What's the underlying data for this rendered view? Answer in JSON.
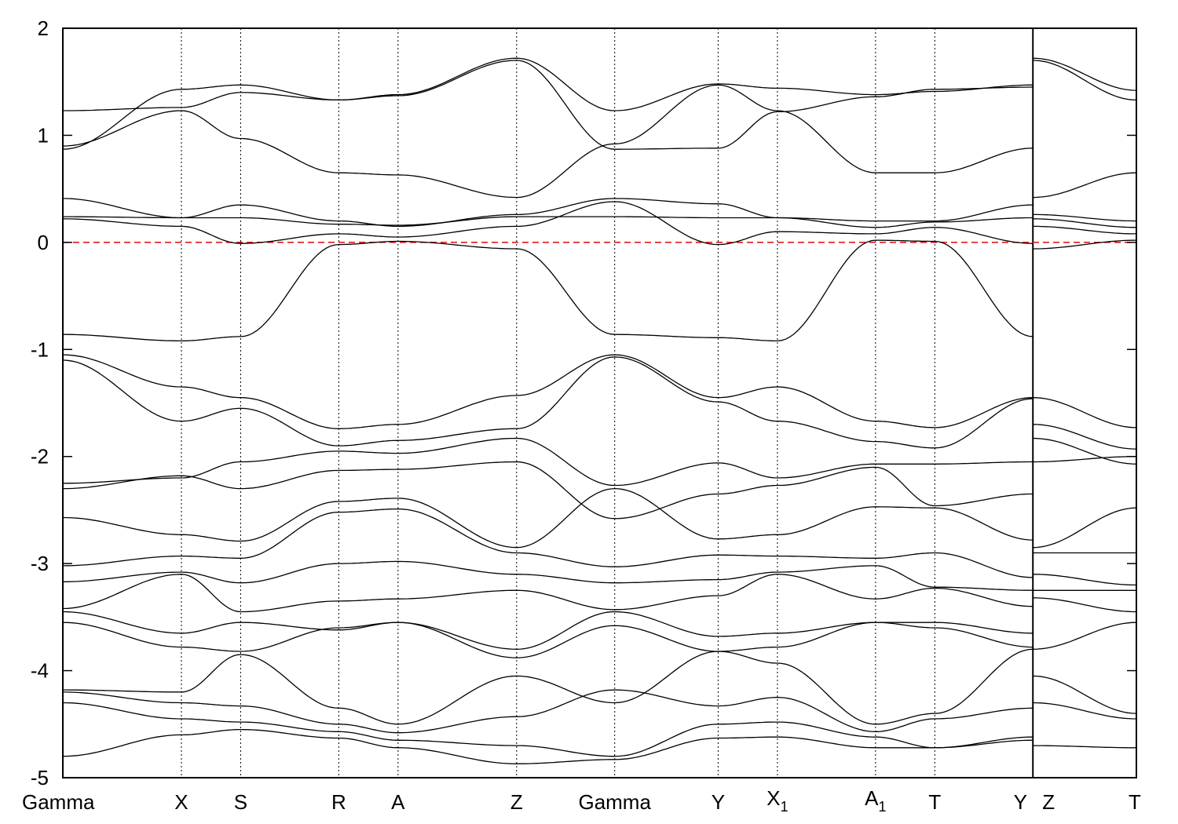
{
  "chart_data": {
    "type": "line",
    "title": "",
    "xlabel": "",
    "ylabel": "",
    "ylim": [
      -5,
      2
    ],
    "yticks": [
      2,
      1,
      0,
      -1,
      -2,
      -3,
      -4,
      -5
    ],
    "ytick_labels": [
      "2",
      "1",
      "0",
      "-1",
      "-2",
      "-3",
      "-4",
      "-5"
    ],
    "grid": false,
    "k_path": [
      {
        "label": "Gamma",
        "sub": "",
        "k": 0.0
      },
      {
        "label": "X",
        "sub": "",
        "k": 1.1
      },
      {
        "label": "S",
        "sub": "",
        "k": 1.65
      },
      {
        "label": "R",
        "sub": "",
        "k": 2.56
      },
      {
        "label": "A",
        "sub": "",
        "k": 3.11
      },
      {
        "label": "Z",
        "sub": "",
        "k": 4.21
      },
      {
        "label": "Gamma",
        "sub": "",
        "k": 5.12
      },
      {
        "label": "Y",
        "sub": "",
        "k": 6.08
      },
      {
        "label": "X",
        "sub": "1",
        "k": 6.63
      },
      {
        "label": "A",
        "sub": "1",
        "k": 7.54
      },
      {
        "label": "T",
        "sub": "",
        "k": 8.09
      },
      {
        "label": "Y",
        "sub": "",
        "k": 9.0
      },
      {
        "label": "Z",
        "sub": "",
        "k": 9.0
      },
      {
        "label": "T",
        "sub": "",
        "k": 9.96
      }
    ],
    "path_break_k": 9.0,
    "fermi_level": 0,
    "colors": {
      "bands": "#000000",
      "fermi_level": "#e41a1c",
      "kpath_lines": "#000000"
    },
    "series": [
      {
        "x": [
          0.0,
          1.1,
          1.65,
          2.56,
          3.11,
          4.21,
          5.12,
          6.08,
          6.63,
          7.54,
          8.09,
          9.0
        ],
        "y": [
          1.23,
          1.26,
          1.4,
          1.33,
          1.38,
          1.72,
          1.23,
          1.48,
          1.44,
          1.38,
          1.41,
          1.47
        ]
      },
      {
        "x": [
          0.0,
          1.1,
          1.65,
          2.56,
          3.11,
          4.21,
          5.12,
          6.08,
          6.63,
          7.54,
          8.09,
          9.0
        ],
        "y": [
          0.9,
          1.23,
          0.97,
          0.65,
          0.63,
          0.42,
          0.92,
          1.47,
          1.23,
          0.65,
          0.65,
          0.88
        ]
      },
      {
        "x": [
          0.0,
          1.1,
          1.65,
          2.56,
          3.11,
          4.21,
          5.12,
          6.08,
          6.63,
          7.54,
          8.09,
          9.0
        ],
        "y": [
          0.87,
          1.43,
          1.47,
          1.33,
          1.37,
          1.7,
          0.87,
          0.88,
          1.22,
          1.36,
          1.43,
          1.45
        ]
      },
      {
        "x": [
          0.0,
          1.1,
          1.65,
          2.56,
          3.11,
          4.21,
          5.12,
          6.08,
          6.63,
          7.54,
          8.09,
          9.0
        ],
        "y": [
          0.41,
          0.23,
          0.35,
          0.2,
          0.15,
          0.26,
          0.41,
          0.36,
          0.23,
          0.2,
          0.2,
          0.35
        ]
      },
      {
        "x": [
          0.0,
          1.1,
          1.65,
          2.56,
          3.11,
          4.21,
          5.12,
          6.08,
          6.63,
          7.54,
          8.09,
          9.0
        ],
        "y": [
          0.24,
          0.23,
          0.23,
          0.17,
          0.16,
          0.24,
          0.24,
          0.23,
          0.23,
          0.14,
          0.19,
          0.23
        ]
      },
      {
        "x": [
          0.0,
          1.1,
          1.65,
          2.56,
          3.11,
          4.21,
          5.12,
          6.08,
          6.63,
          7.54,
          8.09,
          9.0
        ],
        "y": [
          0.22,
          0.15,
          -0.01,
          0.08,
          0.05,
          0.15,
          0.38,
          -0.02,
          0.1,
          0.08,
          0.14,
          -0.01
        ]
      },
      {
        "x": [
          0.0,
          1.1,
          1.65,
          2.56,
          3.11,
          4.21,
          5.12,
          6.08,
          6.63,
          7.54,
          8.09,
          9.0
        ],
        "y": [
          -0.86,
          -0.92,
          -0.88,
          -0.02,
          0.01,
          -0.06,
          -0.86,
          -0.89,
          -0.92,
          0.02,
          0.01,
          -0.88
        ]
      },
      {
        "x": [
          0.0,
          1.1,
          1.65,
          2.56,
          3.11,
          4.21,
          5.12,
          6.08,
          6.63,
          7.54,
          8.09,
          9.0
        ],
        "y": [
          -1.05,
          -1.35,
          -1.45,
          -1.74,
          -1.7,
          -1.43,
          -1.05,
          -1.45,
          -1.35,
          -1.67,
          -1.73,
          -1.45
        ]
      },
      {
        "x": [
          0.0,
          1.1,
          1.65,
          2.56,
          3.11,
          4.21,
          5.12,
          6.08,
          6.63,
          7.54,
          8.09,
          9.0
        ],
        "y": [
          -1.1,
          -1.67,
          -1.55,
          -1.9,
          -1.85,
          -1.74,
          -1.07,
          -1.49,
          -1.67,
          -1.86,
          -1.92,
          -1.46
        ]
      },
      {
        "x": [
          0.0,
          1.1,
          1.65,
          2.56,
          3.11,
          4.21,
          5.12,
          6.08,
          6.63,
          7.54,
          8.09,
          9.0
        ],
        "y": [
          -2.25,
          -2.2,
          -2.05,
          -1.95,
          -1.97,
          -1.83,
          -2.27,
          -2.06,
          -2.2,
          -2.07,
          -2.07,
          -2.05
        ]
      },
      {
        "x": [
          0.0,
          1.1,
          1.65,
          2.56,
          3.11,
          4.21,
          5.12,
          6.08,
          6.63,
          7.54,
          8.09,
          9.0
        ],
        "y": [
          -2.3,
          -2.18,
          -2.3,
          -2.13,
          -2.12,
          -2.05,
          -2.58,
          -2.35,
          -2.27,
          -2.1,
          -2.46,
          -2.35
        ]
      },
      {
        "x": [
          0.0,
          1.1,
          1.65,
          2.56,
          3.11,
          4.21,
          5.12,
          6.08,
          6.63,
          7.54,
          8.09,
          9.0
        ],
        "y": [
          -2.57,
          -2.73,
          -2.79,
          -2.42,
          -2.39,
          -2.85,
          -2.3,
          -2.77,
          -2.73,
          -2.47,
          -2.48,
          -2.78
        ]
      },
      {
        "x": [
          0.0,
          1.1,
          1.65,
          2.56,
          3.11,
          4.21,
          5.12,
          6.08,
          6.63,
          7.54,
          8.09,
          9.0
        ],
        "y": [
          -3.02,
          -2.93,
          -2.95,
          -2.52,
          -2.49,
          -2.9,
          -3.03,
          -2.92,
          -2.93,
          -2.95,
          -2.9,
          -3.13
        ]
      },
      {
        "x": [
          0.0,
          1.1,
          1.65,
          2.56,
          3.11,
          4.21,
          5.12,
          6.08,
          6.63,
          7.54,
          8.09,
          9.0
        ],
        "y": [
          -3.17,
          -3.08,
          -3.18,
          -3.0,
          -2.98,
          -3.1,
          -3.18,
          -3.15,
          -3.08,
          -3.02,
          -3.22,
          -3.25
        ]
      },
      {
        "x": [
          0.0,
          1.1,
          1.65,
          2.56,
          3.11,
          4.21,
          5.12,
          6.08,
          6.63,
          7.54,
          8.09,
          9.0
        ],
        "y": [
          -3.42,
          -3.1,
          -3.45,
          -3.35,
          -3.33,
          -3.25,
          -3.43,
          -3.3,
          -3.1,
          -3.33,
          -3.23,
          -3.4
        ]
      },
      {
        "x": [
          0.0,
          1.1,
          1.65,
          2.56,
          3.11,
          4.21,
          5.12,
          6.08,
          6.63,
          7.54,
          8.09,
          9.0
        ],
        "y": [
          -3.45,
          -3.65,
          -3.55,
          -3.62,
          -3.55,
          -3.8,
          -3.45,
          -3.68,
          -3.65,
          -3.55,
          -3.55,
          -3.65
        ]
      },
      {
        "x": [
          0.0,
          1.1,
          1.65,
          2.56,
          3.11,
          4.21,
          5.12,
          6.08,
          6.63,
          7.54,
          8.09,
          9.0
        ],
        "y": [
          -3.55,
          -3.78,
          -3.82,
          -3.6,
          -3.55,
          -3.88,
          -3.58,
          -3.82,
          -3.78,
          -3.55,
          -3.6,
          -3.78
        ]
      },
      {
        "x": [
          0.0,
          1.1,
          1.65,
          2.56,
          3.11,
          4.21,
          5.12,
          6.08,
          6.63,
          7.54,
          8.09,
          9.0
        ],
        "y": [
          -4.18,
          -4.2,
          -3.85,
          -4.35,
          -4.5,
          -4.05,
          -4.3,
          -3.82,
          -3.93,
          -4.5,
          -4.4,
          -3.8
        ]
      },
      {
        "x": [
          0.0,
          1.1,
          1.65,
          2.56,
          3.11,
          4.21,
          5.12,
          6.08,
          6.63,
          7.54,
          8.09,
          9.0
        ],
        "y": [
          -4.2,
          -4.3,
          -4.33,
          -4.5,
          -4.58,
          -4.43,
          -4.18,
          -4.33,
          -4.25,
          -4.57,
          -4.45,
          -4.35
        ]
      },
      {
        "x": [
          0.0,
          1.1,
          1.65,
          2.56,
          3.11,
          4.21,
          5.12,
          6.08,
          6.63,
          7.54,
          8.09,
          9.0
        ],
        "y": [
          -4.3,
          -4.45,
          -4.48,
          -4.57,
          -4.65,
          -4.7,
          -4.8,
          -4.5,
          -4.48,
          -4.62,
          -4.72,
          -4.62
        ]
      },
      {
        "x": [
          0.0,
          1.1,
          1.65,
          2.56,
          3.11,
          4.21,
          5.12,
          6.08,
          6.63,
          7.54,
          8.09,
          9.0
        ],
        "y": [
          -4.8,
          -4.6,
          -4.55,
          -4.63,
          -4.72,
          -4.87,
          -4.83,
          -4.63,
          -4.62,
          -4.72,
          -4.72,
          -4.65
        ]
      },
      {
        "x": [
          9.0,
          9.96
        ],
        "y": [
          1.72,
          1.42
        ]
      },
      {
        "x": [
          9.0,
          9.96
        ],
        "y": [
          1.7,
          1.33
        ]
      },
      {
        "x": [
          9.0,
          9.96
        ],
        "y": [
          0.42,
          0.65
        ]
      },
      {
        "x": [
          9.0,
          9.96
        ],
        "y": [
          0.26,
          0.2
        ]
      },
      {
        "x": [
          9.0,
          9.96
        ],
        "y": [
          0.22,
          0.14
        ]
      },
      {
        "x": [
          9.0,
          9.96
        ],
        "y": [
          0.15,
          0.08
        ]
      },
      {
        "x": [
          9.0,
          9.96
        ],
        "y": [
          -0.06,
          0.02
        ]
      },
      {
        "x": [
          9.0,
          9.96
        ],
        "y": [
          -1.45,
          -1.73
        ]
      },
      {
        "x": [
          9.0,
          9.96
        ],
        "y": [
          -1.7,
          -1.93
        ]
      },
      {
        "x": [
          9.0,
          9.96
        ],
        "y": [
          -1.83,
          -2.07
        ]
      },
      {
        "x": [
          9.0,
          9.96
        ],
        "y": [
          -2.05,
          -2.0
        ]
      },
      {
        "x": [
          9.0,
          9.96
        ],
        "y": [
          -2.85,
          -2.48
        ]
      },
      {
        "x": [
          9.0,
          9.96
        ],
        "y": [
          -2.9,
          -2.9
        ]
      },
      {
        "x": [
          9.0,
          9.96
        ],
        "y": [
          -3.1,
          -3.2
        ]
      },
      {
        "x": [
          9.0,
          9.96
        ],
        "y": [
          -3.25,
          -3.25
        ]
      },
      {
        "x": [
          9.0,
          9.96
        ],
        "y": [
          -3.32,
          -3.45
        ]
      },
      {
        "x": [
          9.0,
          9.96
        ],
        "y": [
          -3.8,
          -3.55
        ]
      },
      {
        "x": [
          9.0,
          9.96
        ],
        "y": [
          -4.05,
          -4.4
        ]
      },
      {
        "x": [
          9.0,
          9.96
        ],
        "y": [
          -4.3,
          -4.45
        ]
      },
      {
        "x": [
          9.0,
          9.96
        ],
        "y": [
          -4.7,
          -4.72
        ]
      }
    ]
  }
}
